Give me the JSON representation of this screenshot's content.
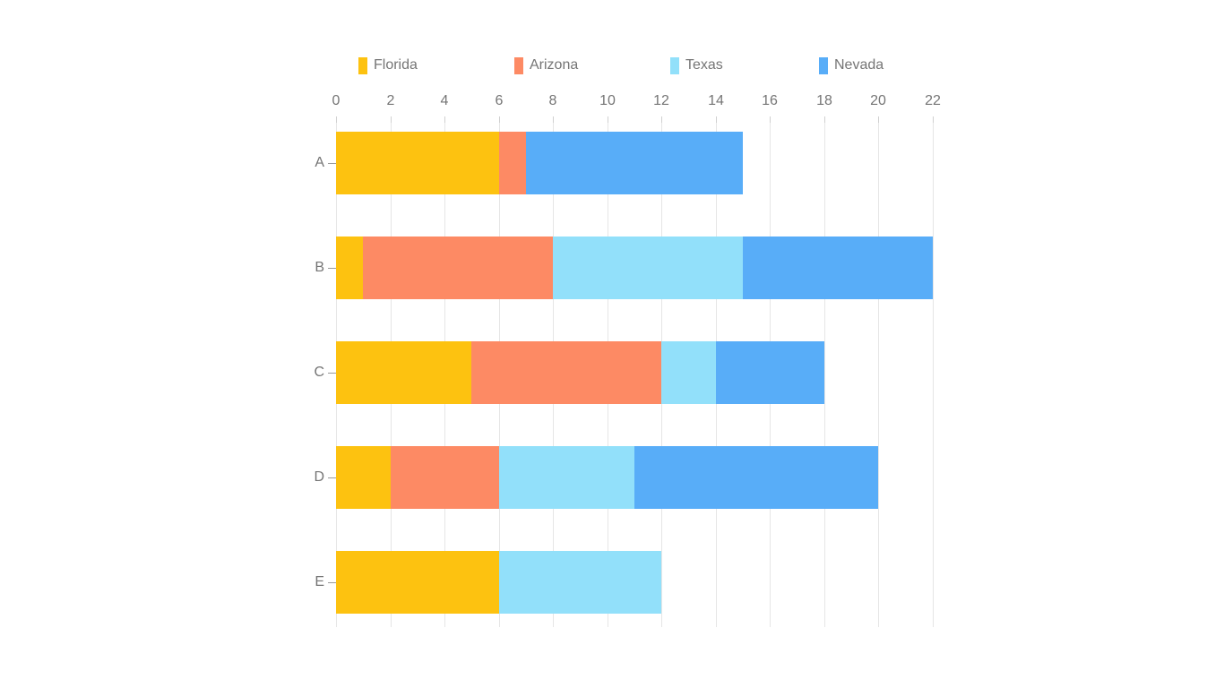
{
  "chart_data": {
    "type": "bar",
    "orientation": "horizontal",
    "stacked": true,
    "title": "",
    "categories": [
      "A",
      "B",
      "C",
      "D",
      "E"
    ],
    "series": [
      {
        "name": "Florida",
        "color": "#FDC210",
        "values": [
          6,
          1,
          5,
          2,
          6
        ]
      },
      {
        "name": "Arizona",
        "color": "#FD8A64",
        "values": [
          1,
          7,
          7,
          4,
          0
        ]
      },
      {
        "name": "Texas",
        "color": "#92E0FA",
        "values": [
          0,
          7,
          2,
          5,
          6
        ]
      },
      {
        "name": "Nevada",
        "color": "#58ADF8",
        "values": [
          8,
          7,
          4,
          9,
          0
        ]
      }
    ],
    "x_axis": {
      "min": 0,
      "max": 22,
      "tick_step": 2,
      "position": "top",
      "tick_labels": [
        "0",
        "2",
        "4",
        "6",
        "8",
        "10",
        "12",
        "14",
        "16",
        "18",
        "20",
        "22"
      ]
    },
    "legend": {
      "position": "top",
      "labels": [
        "Florida",
        "Arizona",
        "Texas",
        "Nevada"
      ]
    },
    "grid": true
  },
  "style_colors": {
    "text": "#757575",
    "gridline": "#E6E6E6",
    "tick": "#D0D0D0",
    "category_dash": "#9A9A9A"
  }
}
